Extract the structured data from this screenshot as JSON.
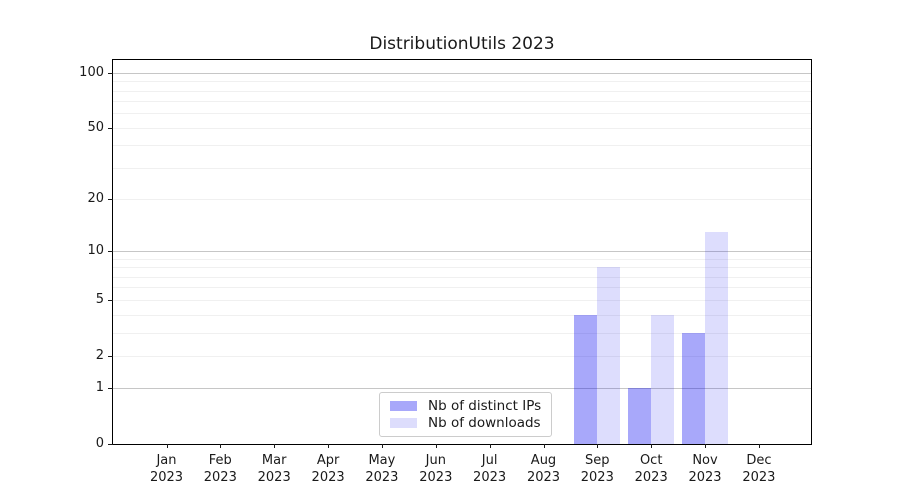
{
  "title": "DistributionUtils 2023",
  "legend": {
    "items": [
      {
        "label": "Nb of distinct IPs",
        "swatch_color": "#a8a8fa"
      },
      {
        "label": "Nb of downloads",
        "swatch_color": "#ddddfc"
      }
    ]
  },
  "chart_data": {
    "type": "bar",
    "title": "DistributionUtils 2023",
    "categories": [
      "Jan",
      "Feb",
      "Mar",
      "Apr",
      "May",
      "Jun",
      "Jul",
      "Aug",
      "Sep",
      "Oct",
      "Nov",
      "Dec"
    ],
    "category_year": "2023",
    "series": [
      {
        "name": "Nb of distinct IPs",
        "fill": "rgba(0,0,240,0.34)",
        "values": [
          null,
          null,
          null,
          null,
          null,
          null,
          null,
          null,
          4,
          1,
          3,
          null
        ]
      },
      {
        "name": "Nb of downloads",
        "fill": "rgba(0,0,240,0.135)",
        "values": [
          null,
          null,
          null,
          null,
          null,
          null,
          null,
          null,
          8,
          4,
          13,
          null
        ]
      }
    ],
    "xlabel": "",
    "ylabel": "",
    "yscale": "log10(1+x)",
    "ylim": [
      0,
      116
    ],
    "y_ticks_labeled": [
      0,
      1,
      2,
      5,
      10,
      20,
      50,
      100
    ],
    "y_major_gridlines": [
      1,
      10,
      100
    ],
    "y_minor_gridlines": [
      2,
      3,
      4,
      5,
      6,
      7,
      8,
      9,
      20,
      30,
      40,
      50,
      60,
      70,
      80,
      90
    ],
    "grid": true,
    "legend_position": "lower center"
  }
}
